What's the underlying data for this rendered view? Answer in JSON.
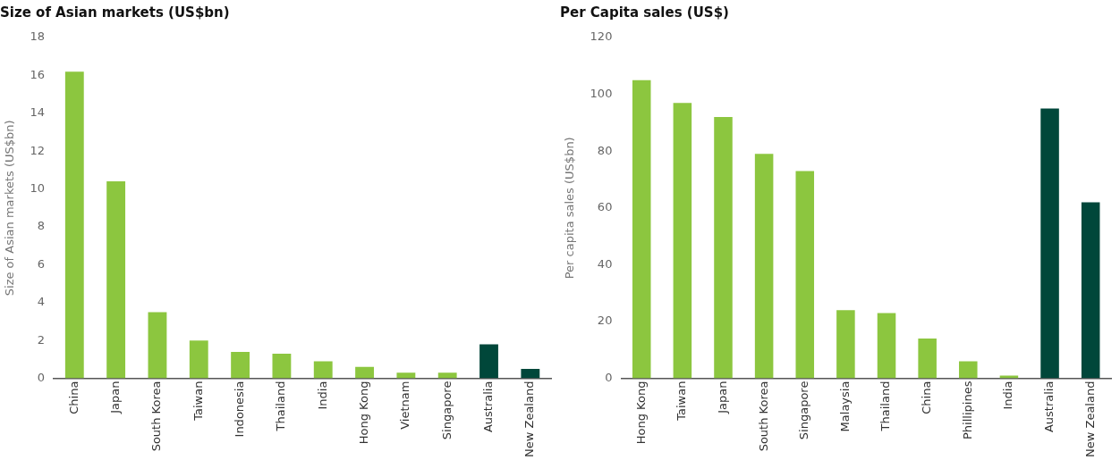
{
  "chart_data": [
    {
      "type": "bar",
      "title": "Size of Asian markets (US$bn)",
      "ylabel": "Size of Asian markets (US$bn)",
      "categories": [
        "China",
        "Japan",
        "South Korea",
        "Taiwan",
        "Indonesia",
        "Thailand",
        "India",
        "Hong Kong",
        "Vietnam",
        "Singapore",
        "Australia",
        "New Zealand"
      ],
      "values": [
        16.2,
        10.4,
        3.5,
        2.0,
        1.4,
        1.3,
        0.9,
        0.6,
        0.3,
        0.3,
        1.8,
        0.5
      ],
      "colors": [
        "#8cc63f",
        "#8cc63f",
        "#8cc63f",
        "#8cc63f",
        "#8cc63f",
        "#8cc63f",
        "#8cc63f",
        "#8cc63f",
        "#8cc63f",
        "#8cc63f",
        "#00473a",
        "#00473a"
      ],
      "ylim": [
        0,
        18
      ],
      "yticks": [
        0,
        2,
        4,
        6,
        8,
        10,
        12,
        14,
        16,
        18
      ],
      "grid": false,
      "legend": false
    },
    {
      "type": "bar",
      "title": "Per Capita sales (US$)",
      "ylabel": "Per capita sales (US$bn)",
      "categories": [
        "Hong Kong",
        "Taiwan",
        "Japan",
        "South Korea",
        "Singapore",
        "Malaysia",
        "Thailand",
        "China",
        "Phillipines",
        "India",
        "Australia",
        "New Zealand"
      ],
      "values": [
        105,
        97,
        92,
        79,
        73,
        24,
        23,
        14,
        6,
        1,
        95,
        62
      ],
      "colors": [
        "#8cc63f",
        "#8cc63f",
        "#8cc63f",
        "#8cc63f",
        "#8cc63f",
        "#8cc63f",
        "#8cc63f",
        "#8cc63f",
        "#8cc63f",
        "#8cc63f",
        "#00473a",
        "#00473a"
      ],
      "ylim": [
        0,
        120
      ],
      "yticks": [
        0,
        20,
        40,
        60,
        80,
        100,
        120
      ],
      "grid": false,
      "legend": false
    }
  ]
}
